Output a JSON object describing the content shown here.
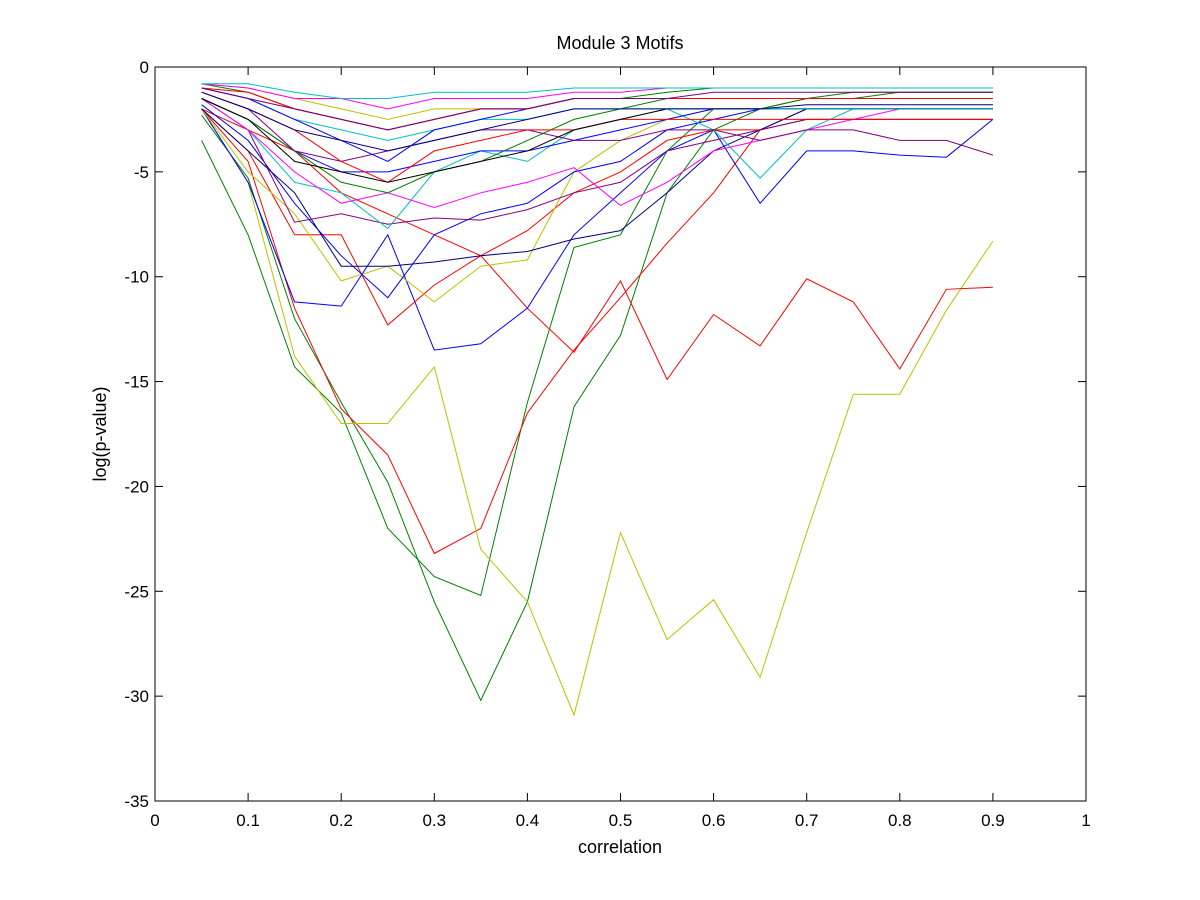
{
  "chart_data": {
    "type": "line",
    "title": "Module 3 Motifs",
    "xlabel": "correlation",
    "ylabel": "log(p-value)",
    "xlim": [
      0,
      1
    ],
    "ylim": [
      -35,
      0
    ],
    "xticks": [
      0,
      0.1,
      0.2,
      0.3,
      0.4,
      0.5,
      0.6,
      0.7,
      0.8,
      0.9,
      1
    ],
    "xtick_labels": [
      "0",
      "0.1",
      "0.2",
      "0.3",
      "0.4",
      "0.5",
      "0.6",
      "0.7",
      "0.8",
      "0.9",
      "1"
    ],
    "yticks": [
      0,
      -5,
      -10,
      -15,
      -20,
      -25,
      -30,
      -35
    ],
    "ytick_labels": [
      "0",
      "-5",
      "-10",
      "-15",
      "-20",
      "-25",
      "-30",
      "-35"
    ],
    "grid": false,
    "legend": "none",
    "x": [
      0.05,
      0.1,
      0.15,
      0.2,
      0.25,
      0.3,
      0.35,
      0.4,
      0.45,
      0.5,
      0.55,
      0.6,
      0.65,
      0.7,
      0.75,
      0.8,
      0.85,
      0.9
    ],
    "series": [
      {
        "color": "#008000",
        "values": [
          -3.5,
          -8,
          -14.3,
          -16.5,
          -22,
          -24.3,
          -25.2,
          -16,
          -8.6,
          -8,
          -4,
          -2,
          -2,
          -1.5,
          -1.5,
          -1.2,
          -1.2,
          -1.2
        ]
      },
      {
        "color": "#008000",
        "values": [
          -2.3,
          -5.3,
          -12,
          -16,
          -19.8,
          -25.5,
          -30.2,
          -25.5,
          -16.2,
          -12.8,
          -6,
          -3,
          -2,
          -1.5,
          -1.2,
          -1.2,
          -1.2,
          -1.2
        ]
      },
      {
        "color": "#FF0000",
        "values": [
          -2,
          -4.5,
          -11.5,
          -16.3,
          -18.5,
          -23.2,
          -22,
          -16.5,
          -13.5,
          -11,
          -8.4,
          -6,
          -3,
          -2,
          -2,
          -2,
          -2,
          -2
        ]
      },
      {
        "color": "#BFBF00",
        "values": [
          -2,
          -5.5,
          -13.8,
          -17,
          -17,
          -14.3,
          -23,
          -25.5,
          -30.9,
          -22.2,
          -27.3,
          -25.4,
          -29.1,
          -22.2,
          -15.6,
          -15.6,
          -11.6,
          -8.3
        ]
      },
      {
        "color": "#FF0000",
        "values": [
          -2,
          -3,
          -4,
          -6,
          -7,
          -8,
          -9,
          -11.5,
          -13.6,
          -10.2,
          -14.9,
          -11.8,
          -13.3,
          -10.1,
          -11.2,
          -14.4,
          -10.6,
          -10.5
        ]
      },
      {
        "color": "#0000FF",
        "values": [
          -2,
          -5.5,
          -11.2,
          -11.4,
          -8,
          -13.5,
          -13.2,
          -11.5,
          -8,
          -6,
          -4,
          -3,
          -6.5,
          -4,
          -4,
          -4.2,
          -4.3,
          -2.5
        ]
      },
      {
        "color": "#FF0000",
        "values": [
          -2,
          -4,
          -8,
          -8,
          -12.3,
          -10.4,
          -9,
          -7.8,
          -6,
          -5,
          -3.5,
          -3,
          -3,
          -2.5,
          -2.5,
          -2.5,
          -2.5,
          -2.5
        ]
      },
      {
        "color": "#BFBF00",
        "values": [
          -2,
          -5,
          -7,
          -10.2,
          -9.5,
          -11.2,
          -9.5,
          -9.2,
          -5,
          -3.5,
          -2.5,
          -2,
          -2,
          -2,
          -2,
          -2,
          -2,
          -2
        ]
      },
      {
        "color": "#000080",
        "values": [
          -2,
          -4,
          -6,
          -9.5,
          -9.5,
          -9.3,
          -9,
          -8.8,
          -8.2,
          -7.8,
          -6,
          -4,
          -3,
          -2,
          -2,
          -2,
          -2,
          -2
        ]
      },
      {
        "color": "#0000FF",
        "values": [
          -1.8,
          -3.5,
          -6.5,
          -9,
          -11,
          -8,
          -7,
          -6.5,
          -5,
          -4.5,
          -3,
          -2.5,
          -2,
          -2,
          -2,
          -2,
          -2,
          -2
        ]
      },
      {
        "color": "#800080",
        "values": [
          -1.5,
          -3,
          -7.4,
          -7,
          -7.5,
          -7.2,
          -7.3,
          -6.8,
          -6,
          -5.5,
          -4,
          -3.5,
          -3,
          -2.5,
          -2.5,
          -2.5,
          -2.5,
          -2.5
        ]
      },
      {
        "color": "#00BFBF",
        "values": [
          -1.5,
          -3,
          -5.5,
          -6,
          -7.7,
          -5,
          -4,
          -4.5,
          -3,
          -2.5,
          -2,
          -3,
          -5.3,
          -3,
          -2,
          -2,
          -2,
          -2
        ]
      },
      {
        "color": "#FF00FF",
        "values": [
          -1.5,
          -3,
          -5,
          -6.5,
          -6,
          -6.7,
          -6,
          -5.5,
          -4.8,
          -6.6,
          -5.5,
          -4,
          -3.5,
          -3,
          -2.5,
          -2,
          -2,
          -2
        ]
      },
      {
        "color": "#0000FF",
        "values": [
          -1.5,
          -2.5,
          -4,
          -5,
          -5,
          -4.5,
          -4,
          -4,
          -3.5,
          -3,
          -2.5,
          -2,
          -2,
          -2,
          -2,
          -2,
          -2,
          -2
        ]
      },
      {
        "color": "#008000",
        "values": [
          -1.5,
          -2.5,
          -4,
          -5.5,
          -6,
          -5,
          -4.5,
          -3.5,
          -2.5,
          -2,
          -1.5,
          -1.5,
          -1.5,
          -1.5,
          -1.5,
          -1.5,
          -1.5,
          -1.5
        ]
      },
      {
        "color": "#800080",
        "values": [
          -1.2,
          -2,
          -4,
          -4.5,
          -4,
          -3.5,
          -3,
          -3,
          -3.5,
          -3.5,
          -3,
          -3,
          -3.5,
          -3,
          -3,
          -3.5,
          -3.5,
          -4.2
        ]
      },
      {
        "color": "#FF0000",
        "values": [
          -1.2,
          -2,
          -3,
          -4.5,
          -5.5,
          -4,
          -3.5,
          -3,
          -3,
          -2.5,
          -2.5,
          -2.5,
          -2.5,
          -2.5,
          -2.5,
          -2.5,
          -2.5,
          -2.5
        ]
      },
      {
        "color": "#000000",
        "values": [
          -1.5,
          -2.5,
          -4.5,
          -5,
          -5.5,
          -5,
          -4.5,
          -4,
          -3,
          -2.5,
          -2,
          -2,
          -2,
          -2,
          -2,
          -2,
          -2,
          -2
        ]
      },
      {
        "color": "#00BFBF",
        "values": [
          -1,
          -1.5,
          -2.5,
          -3,
          -3.5,
          -3,
          -2.5,
          -2.5,
          -2,
          -2,
          -2,
          -2,
          -2,
          -2,
          -2,
          -2,
          -2,
          -2
        ]
      },
      {
        "color": "#BFBF00",
        "values": [
          -0.8,
          -1,
          -1.5,
          -2,
          -2.5,
          -2,
          -2,
          -2,
          -1.5,
          -1.5,
          -1.5,
          -1.5,
          -1.5,
          -1.5,
          -1.5,
          -1.5,
          -1.5,
          -1.5
        ]
      },
      {
        "color": "#0000FF",
        "values": [
          -1,
          -1.5,
          -2.5,
          -3.5,
          -4.5,
          -3,
          -2.5,
          -2,
          -1.5,
          -1.5,
          -1.5,
          -1.5,
          -1.5,
          -1.5,
          -1.5,
          -1.5,
          -1.5,
          -1.5
        ]
      },
      {
        "color": "#008000",
        "values": [
          -0.8,
          -1.2,
          -2,
          -2.5,
          -3,
          -2.5,
          -2,
          -2,
          -1.5,
          -1.5,
          -1.2,
          -1,
          -1,
          -1,
          -1,
          -1,
          -1,
          -1
        ]
      },
      {
        "color": "#FF00FF",
        "values": [
          -0.8,
          -1,
          -1.5,
          -1.5,
          -2,
          -1.5,
          -1.5,
          -1.5,
          -1.2,
          -1.2,
          -1,
          -1,
          -1,
          -1,
          -1,
          -1,
          -1,
          -1
        ]
      },
      {
        "color": "#FF0000",
        "values": [
          -1,
          -1.2,
          -2,
          -2.5,
          -3,
          -2.5,
          -2,
          -2,
          -1.5,
          -1.5,
          -1.5,
          -1.5,
          -1.5,
          -1.5,
          -1.5,
          -1.5,
          -1.5,
          -1.5
        ]
      },
      {
        "color": "#00BFBF",
        "values": [
          -0.8,
          -0.8,
          -1.2,
          -1.5,
          -1.5,
          -1.2,
          -1.2,
          -1.2,
          -1,
          -1,
          -1,
          -1,
          -1,
          -1,
          -1,
          -1,
          -1,
          -1
        ]
      },
      {
        "color": "#000080",
        "values": [
          -1.2,
          -2,
          -3,
          -3.5,
          -4,
          -3.5,
          -3,
          -2.5,
          -2,
          -2,
          -2,
          -2,
          -2,
          -1.8,
          -1.8,
          -1.8,
          -1.8,
          -1.8
        ]
      },
      {
        "color": "#800080",
        "values": [
          -1,
          -1.5,
          -2,
          -2.5,
          -3,
          -2.5,
          -2,
          -2,
          -1.5,
          -1.5,
          -1.5,
          -1.2,
          -1.2,
          -1.2,
          -1.2,
          -1.2,
          -1.2,
          -1.2
        ]
      }
    ]
  }
}
